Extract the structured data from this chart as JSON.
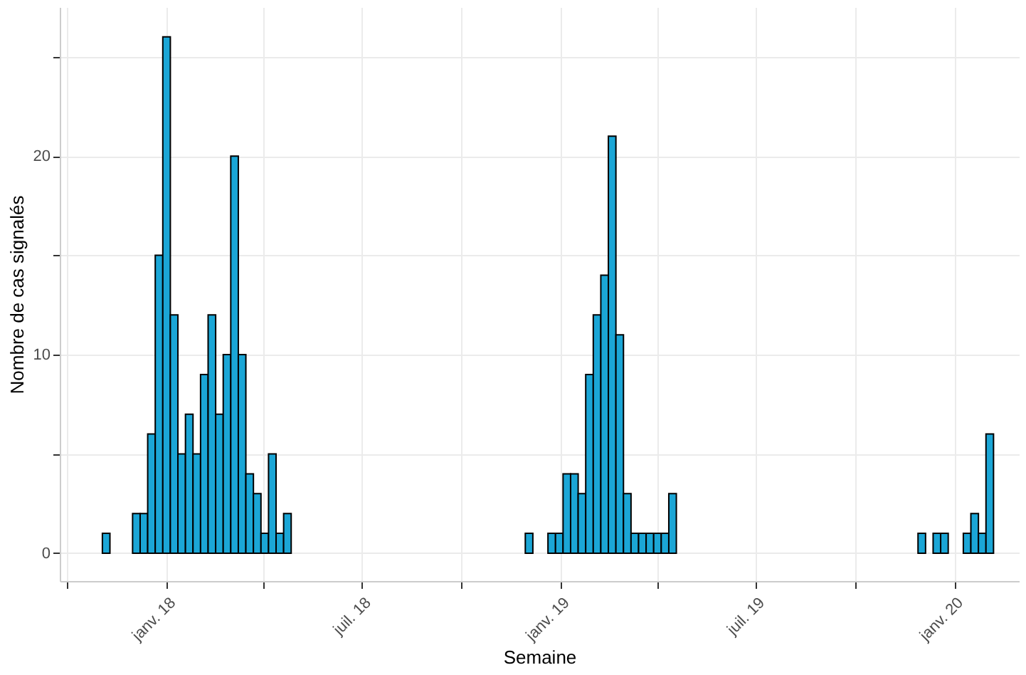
{
  "chart_data": {
    "type": "bar",
    "xlabel": "Semaine",
    "ylabel": "Nombre de cas signalés",
    "x": [
      "2017-11-06",
      "2017-12-04",
      "2017-12-11",
      "2017-12-18",
      "2017-12-25",
      "2018-01-01",
      "2018-01-08",
      "2018-01-15",
      "2018-01-22",
      "2018-01-29",
      "2018-02-05",
      "2018-02-12",
      "2018-02-19",
      "2018-02-26",
      "2018-03-05",
      "2018-03-12",
      "2018-03-19",
      "2018-03-26",
      "2018-04-02",
      "2018-04-09",
      "2018-04-16",
      "2018-04-23",
      "2018-12-03",
      "2018-12-24",
      "2018-12-31",
      "2019-01-07",
      "2019-01-14",
      "2019-01-21",
      "2019-01-28",
      "2019-02-04",
      "2019-02-11",
      "2019-02-18",
      "2019-02-25",
      "2019-03-04",
      "2019-03-11",
      "2019-03-18",
      "2019-03-25",
      "2019-04-01",
      "2019-04-08",
      "2019-04-15",
      "2019-12-02",
      "2019-12-16",
      "2019-12-23",
      "2020-01-13",
      "2020-01-20",
      "2020-01-27",
      "2020-02-03"
    ],
    "values": [
      1,
      2,
      2,
      6,
      15,
      26,
      12,
      5,
      7,
      5,
      9,
      12,
      7,
      10,
      20,
      10,
      4,
      3,
      1,
      5,
      1,
      2,
      1,
      1,
      1,
      4,
      4,
      3,
      9,
      12,
      14,
      21,
      11,
      3,
      1,
      1,
      1,
      1,
      1,
      3,
      1,
      1,
      1,
      1,
      2,
      1,
      6
    ],
    "color": "#1ba6d6",
    "xlim": [
      "2017-09-24",
      "2020-03-01"
    ],
    "xticks": [
      {
        "value": "2017-10-01",
        "label": null
      },
      {
        "value": "2018-01-01",
        "label": "janv. 18"
      },
      {
        "value": "2018-04-01",
        "label": null
      },
      {
        "value": "2018-07-01",
        "label": "juil. 18"
      },
      {
        "value": "2018-10-01",
        "label": null
      },
      {
        "value": "2019-01-01",
        "label": "janv. 19"
      },
      {
        "value": "2019-04-01",
        "label": null
      },
      {
        "value": "2019-07-01",
        "label": "juil. 19"
      },
      {
        "value": "2019-10-01",
        "label": null
      },
      {
        "value": "2020-01-01",
        "label": "janv. 20"
      }
    ],
    "ylim": [
      -1.4,
      27.5
    ],
    "yticks": [
      {
        "value": 0,
        "label": "0"
      },
      {
        "value": 5,
        "label": null
      },
      {
        "value": 10,
        "label": "10"
      },
      {
        "value": 15,
        "label": null
      },
      {
        "value": 20,
        "label": "20"
      },
      {
        "value": 25,
        "label": null
      }
    ],
    "grid": true
  }
}
